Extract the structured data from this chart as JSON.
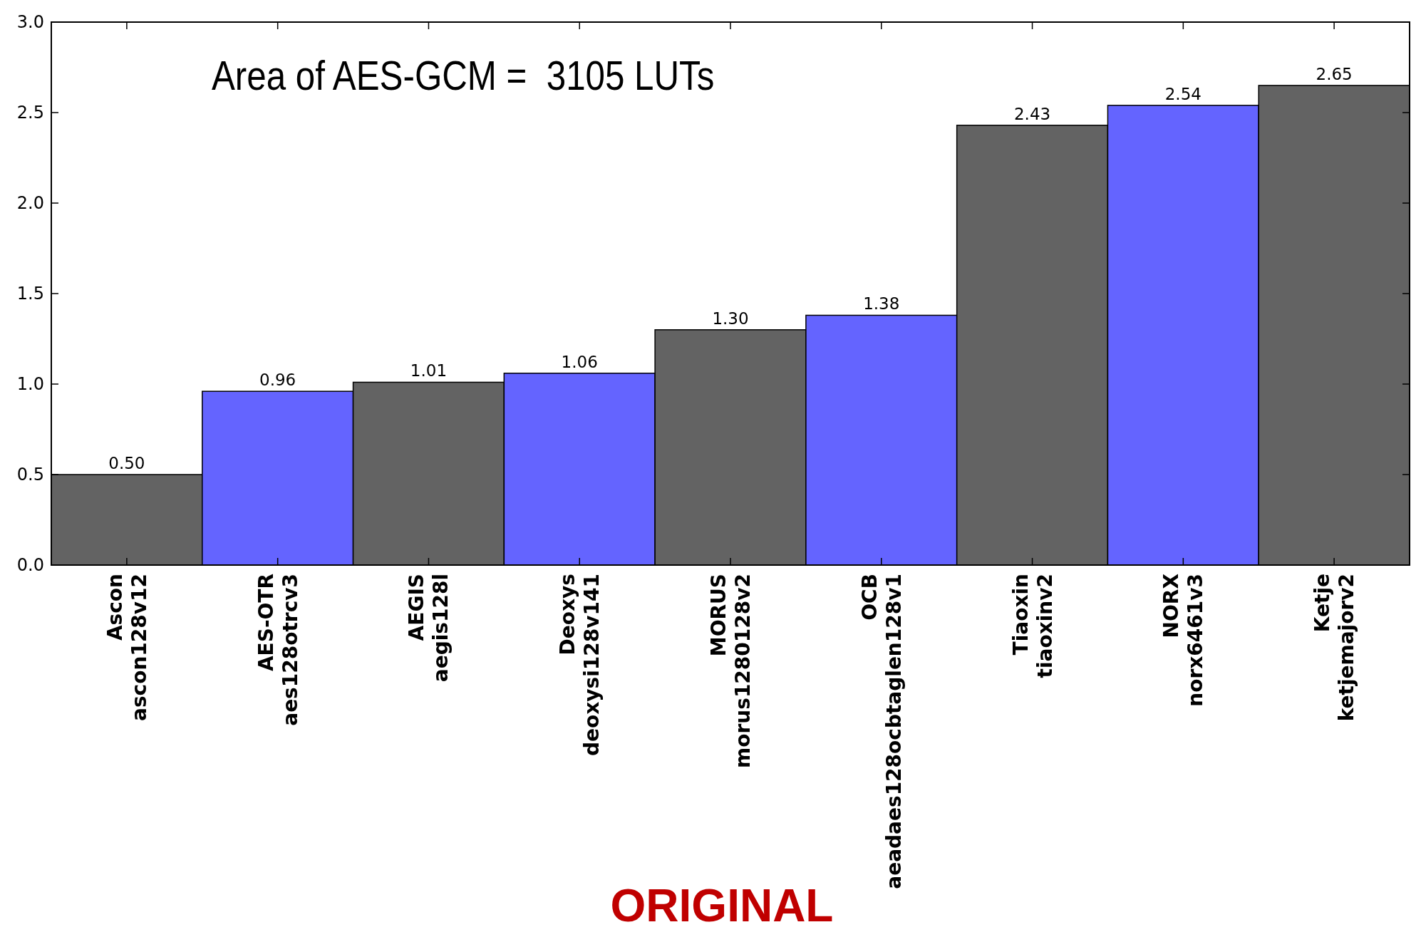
{
  "chart_data": {
    "type": "bar",
    "categories": [
      "Ascon\nascon128v12",
      "AES-OTR\naes128otrcv3",
      "AEGIS\naegis128l",
      "Deoxys\ndeoxysi128v141",
      "MORUS\nmorus1280128v2",
      "OCB\naeadaes128ocbtaglen128v1",
      "Tiaoxin\ntiaoxinv2",
      "NORX\nnorx6461v3",
      "Ketje\nketjemajorv2"
    ],
    "values": [
      0.5,
      0.96,
      1.01,
      1.06,
      1.3,
      1.38,
      2.43,
      2.54,
      2.65
    ],
    "colors": [
      "#636363",
      "#6464ff",
      "#636363",
      "#6464ff",
      "#636363",
      "#6464ff",
      "#636363",
      "#6464ff",
      "#636363"
    ],
    "value_labels": [
      "0.50",
      "0.96",
      "1.01",
      "1.06",
      "1.30",
      "1.38",
      "2.43",
      "2.54",
      "2.65"
    ],
    "ylim": [
      0,
      3
    ],
    "yticks": [
      {
        "value": 0,
        "label": "0.0"
      },
      {
        "value": 0.5,
        "label": "0.5"
      },
      {
        "value": 1,
        "label": "1.0"
      },
      {
        "value": 1.5,
        "label": "1.5"
      },
      {
        "value": 2,
        "label": "2.0"
      },
      {
        "value": 2.5,
        "label": "2.5"
      },
      {
        "value": 3,
        "label": "3.0"
      }
    ],
    "grid": false,
    "annotations": [
      "Area of AES-GCM =  3105 LUTs",
      "ORIGINAL"
    ]
  }
}
